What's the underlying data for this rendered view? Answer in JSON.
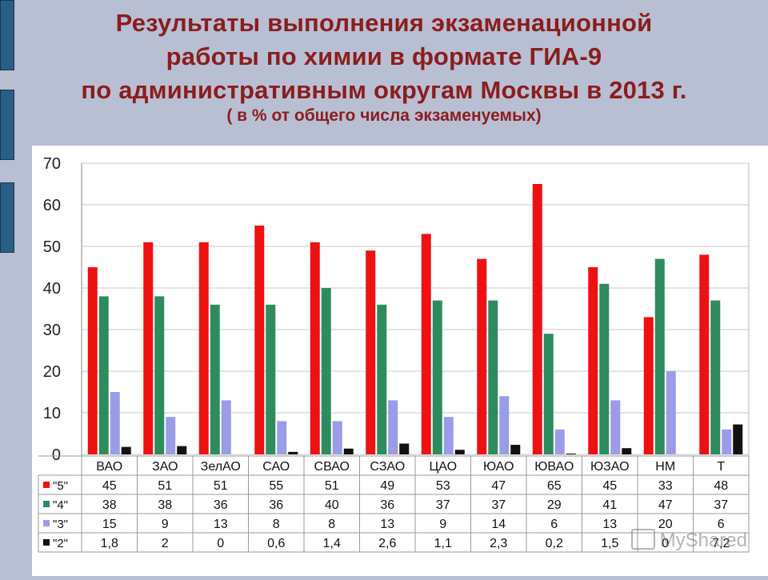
{
  "title_lines": [
    "Результаты выполнения экзаменационной",
    "работы по химии в формате ГИА-9",
    "по административным округам Москвы в 2013 г."
  ],
  "subtitle": "( в % от общего числа экзаменуемых)",
  "watermark": "MyShared",
  "colors": {
    "background": "#b8bfd3",
    "title": "#8b1d1d",
    "side_bars": "#2b5e86"
  },
  "chart_data": {
    "type": "bar",
    "categories": [
      "ВАО",
      "ЗАО",
      "ЗелАО",
      "САО",
      "СВАО",
      "СЗАО",
      "ЦАО",
      "ЮАО",
      "ЮВАО",
      "ЮЗАО",
      "НМ",
      "Т"
    ],
    "series": [
      {
        "name": "\"5\"",
        "color": "#ee1111",
        "values": [
          45,
          51,
          51,
          55,
          51,
          49,
          53,
          47,
          65,
          45,
          33,
          48
        ]
      },
      {
        "name": "\"4\"",
        "color": "#2e8b5e",
        "values": [
          38,
          38,
          36,
          36,
          40,
          36,
          37,
          37,
          29,
          41,
          47,
          37
        ]
      },
      {
        "name": "\"3\"",
        "color": "#9a9ce8",
        "values": [
          15,
          9,
          13,
          8,
          8,
          13,
          9,
          14,
          6,
          13,
          20,
          6
        ]
      },
      {
        "name": "\"2\"",
        "color": "#111111",
        "values": [
          1.8,
          2,
          0,
          0.6,
          1.4,
          2.6,
          1.1,
          2.3,
          0.2,
          1.5,
          0,
          7.2
        ]
      }
    ],
    "table_labels": [
      [
        "45",
        "51",
        "51",
        "55",
        "51",
        "49",
        "53",
        "47",
        "65",
        "45",
        "33",
        "48"
      ],
      [
        "38",
        "38",
        "36",
        "36",
        "40",
        "36",
        "37",
        "37",
        "29",
        "41",
        "47",
        "37"
      ],
      [
        "15",
        "9",
        "13",
        "8",
        "8",
        "13",
        "9",
        "14",
        "6",
        "13",
        "20",
        "6"
      ],
      [
        "1,8",
        "2",
        "0",
        "0,6",
        "1,4",
        "2,6",
        "1,1",
        "2,3",
        "0,2",
        "1,5",
        "0",
        "7,2"
      ]
    ],
    "y_ticks": [
      "0",
      "10",
      "20",
      "30",
      "40",
      "50",
      "60",
      "70"
    ],
    "ylim": [
      0,
      70
    ],
    "grid": true,
    "legend": "data table below chart"
  }
}
